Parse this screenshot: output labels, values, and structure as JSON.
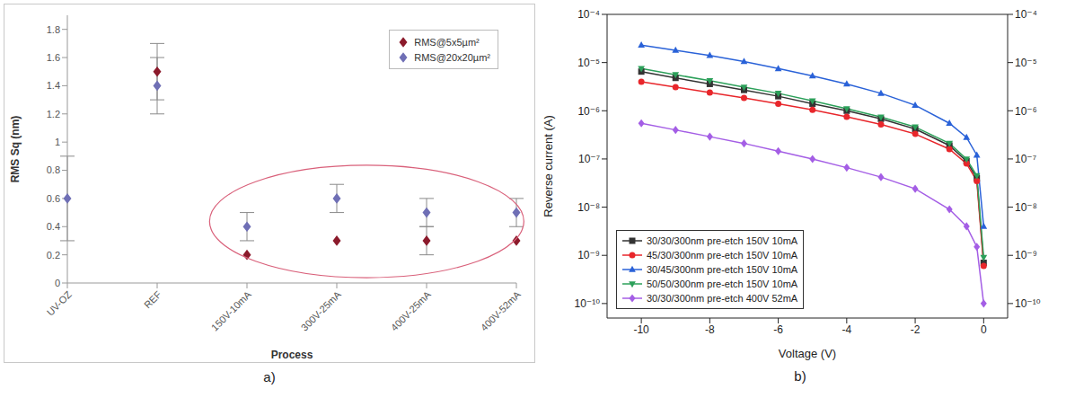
{
  "chart_data": [
    {
      "type": "scatter",
      "xlabel": "Process",
      "ylabel": "RMS Sq (nm)",
      "categories": [
        "UV-OZ",
        "REF",
        "150V-10mA",
        "300V-25mA",
        "400V-25mA",
        "400V-52mA"
      ],
      "ylim": [
        0,
        1.9
      ],
      "yticks": [
        0,
        0.2,
        0.4,
        0.6,
        0.8,
        1,
        1.2,
        1.4,
        1.6,
        1.8
      ],
      "marker": "diamond",
      "legend": "upper right",
      "series": [
        {
          "name": "RMS@5x5µm²",
          "color": "#8b1a2b",
          "values": [
            null,
            1.5,
            0.2,
            0.3,
            0.3,
            0.3
          ],
          "errors": [
            null,
            0.2,
            null,
            null,
            0.1,
            null
          ]
        },
        {
          "name": "RMS@20x20µm²",
          "color": "#6f6fb5",
          "values": [
            0.6,
            1.4,
            0.4,
            0.6,
            0.5,
            0.5
          ],
          "errors": [
            0.3,
            0.2,
            0.1,
            0.1,
            0.1,
            0.1
          ]
        }
      ],
      "annotations": [
        "a)"
      ]
    },
    {
      "type": "line",
      "xlabel": "Voltage (V)",
      "ylabel": "Reverse current (A)",
      "log": "y",
      "x": [
        -10,
        -9,
        -8,
        -7,
        -6,
        -5,
        -4,
        -3,
        -2,
        -1,
        -0.5,
        -0.2,
        0
      ],
      "xlim": [
        -11,
        0.7
      ],
      "xticks": [
        -10,
        -8,
        -6,
        -4,
        -2,
        0
      ],
      "ylim": [
        5e-11,
        0.0001
      ],
      "yticks": [
        {
          "value": 1e-10,
          "label": "10⁻¹⁰"
        },
        {
          "value": 1e-09,
          "label": "10⁻⁹"
        },
        {
          "value": 1e-08,
          "label": "10⁻⁸"
        },
        {
          "value": 1e-07,
          "label": "10⁻⁷"
        },
        {
          "value": 1e-06,
          "label": "10⁻⁶"
        },
        {
          "value": 1e-05,
          "label": "10⁻⁵"
        },
        {
          "value": 0.0001,
          "label": "10⁻⁴"
        }
      ],
      "y2lim": [
        5e-11,
        0.0001
      ],
      "y2ticks": [
        {
          "value": 1e-10,
          "label": "10⁻¹⁰"
        },
        {
          "value": 1e-09,
          "label": "10⁻⁹"
        },
        {
          "value": 1e-08,
          "label": "10⁻⁸"
        },
        {
          "value": 1e-07,
          "label": "10⁻⁷"
        },
        {
          "value": 1e-06,
          "label": "10⁻⁶"
        },
        {
          "value": 1e-05,
          "label": "10⁻⁵"
        },
        {
          "value": 0.0001,
          "label": "10⁻⁴"
        }
      ],
      "legend": "lower left",
      "series": [
        {
          "name": "30/30/300nm pre-etch 150V 10mA",
          "color": "#333333",
          "marker": "square",
          "values": [
            6.5e-06,
            4.8e-06,
            3.6e-06,
            2.7e-06,
            2e-06,
            1.4e-06,
            1e-06,
            6.8e-07,
            4.2e-07,
            1.9e-07,
            9e-08,
            4e-08,
            7e-10
          ]
        },
        {
          "name": "45/30/300nm pre-etch 150V 10mA",
          "color": "#e8262b",
          "marker": "circle",
          "values": [
            4e-06,
            3.1e-06,
            2.4e-06,
            1.85e-06,
            1.4e-06,
            1.05e-06,
            7.5e-07,
            5.2e-07,
            3.3e-07,
            1.6e-07,
            8e-08,
            3.5e-08,
            6e-10
          ]
        },
        {
          "name": "30/45/300nm pre-etch 150V 10mA",
          "color": "#2a62d8",
          "marker": "triangle",
          "values": [
            2.3e-05,
            1.8e-05,
            1.4e-05,
            1.05e-05,
            7.5e-06,
            5.3e-06,
            3.6e-06,
            2.3e-06,
            1.3e-06,
            5.5e-07,
            2.8e-07,
            1.2e-07,
            4e-09
          ]
        },
        {
          "name": "50/50/300nm pre-etch 150V 10mA",
          "color": "#2ca05a",
          "marker": "triangle_down",
          "values": [
            7.5e-06,
            5.6e-06,
            4.2e-06,
            3.1e-06,
            2.3e-06,
            1.6e-06,
            1.1e-06,
            7.4e-07,
            4.6e-07,
            2.1e-07,
            1e-07,
            4.5e-08,
            9e-10
          ]
        },
        {
          "name": "30/30/300nm pre-etch 400V 52mA",
          "color": "#a45ee5",
          "marker": "diamond",
          "values": [
            5.5e-07,
            4e-07,
            2.9e-07,
            2.1e-07,
            1.45e-07,
            1e-07,
            6.6e-08,
            4.2e-08,
            2.4e-08,
            9e-09,
            4e-09,
            1.5e-09,
            1e-10
          ]
        }
      ],
      "annotations": [
        "b)"
      ]
    }
  ]
}
